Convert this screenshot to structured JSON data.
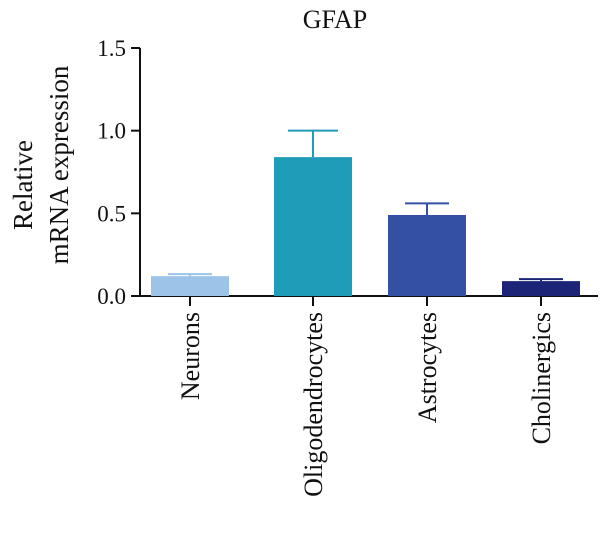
{
  "chart_data": {
    "type": "bar",
    "title": "GFAP",
    "ylabel_lines": [
      "Relative",
      "mRNA expression"
    ],
    "xlabel": "",
    "ylim": [
      0,
      1.5
    ],
    "yticks": [
      "0.0",
      "0.5",
      "1.0",
      "1.5"
    ],
    "categories": [
      "Neurons",
      "Oligodendrocytes",
      "Astrocytes",
      "Cholinergics"
    ],
    "values": [
      0.12,
      0.84,
      0.49,
      0.09
    ],
    "errors": [
      0.012,
      0.16,
      0.07,
      0.012
    ],
    "colors": [
      "#9cc3e8",
      "#1f9cb8",
      "#3350a4",
      "#1c2478"
    ],
    "grid": false,
    "legend": "none"
  }
}
